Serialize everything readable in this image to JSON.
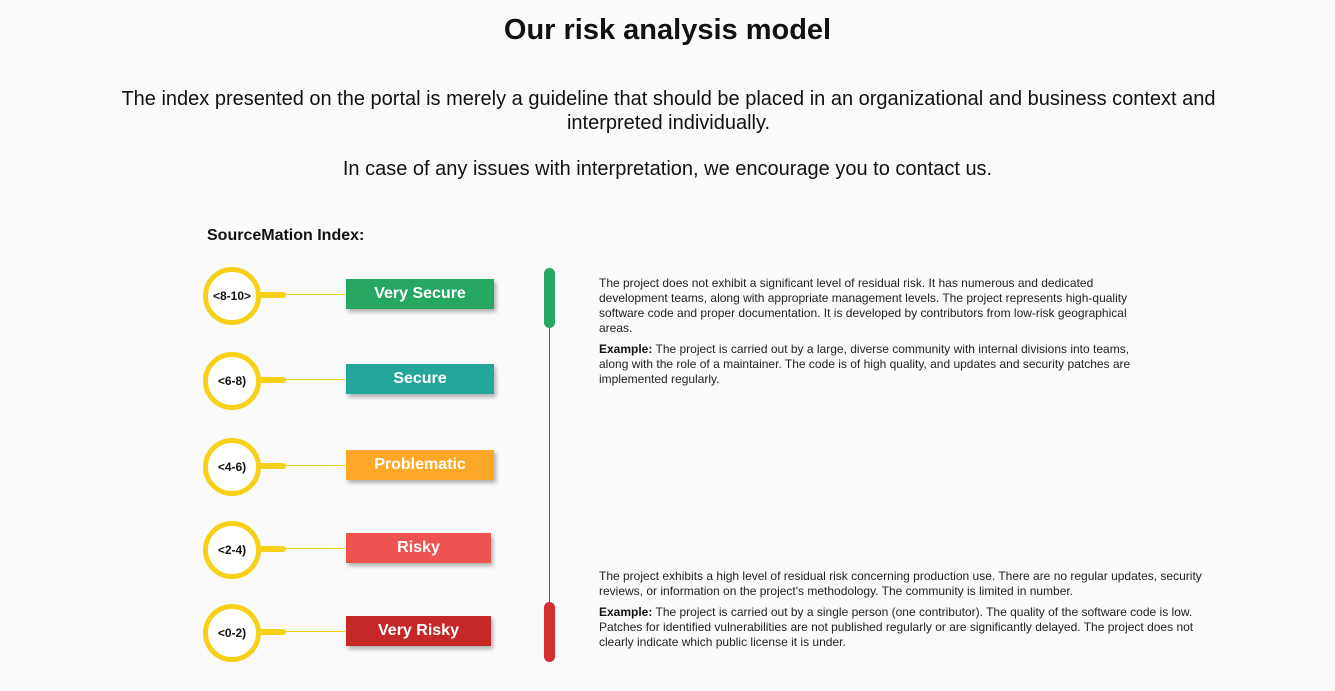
{
  "header": {
    "title": "Our risk analysis model",
    "intro": "The index presented on the portal is merely a guideline that should be placed in an organizational and business context and interpreted individually.",
    "contact": "In case of any issues with interpretation, we encourage you to contact us."
  },
  "index": {
    "label": "SourceMation Index:",
    "levels": [
      {
        "range": "<8-10>",
        "name": "Very Secure",
        "color": "#27a862"
      },
      {
        "range": "<6-8)",
        "name": "Secure",
        "color": "#26a69a"
      },
      {
        "range": "<4-6)",
        "name": "Problematic",
        "color": "#ffa726"
      },
      {
        "range": "<2-4)",
        "name": "Risky",
        "color": "#ef5350"
      },
      {
        "range": "<0-2)",
        "name": "Very Risky",
        "color": "#c62828"
      }
    ]
  },
  "scale": {
    "top_color": "#27a862",
    "bottom_color": "#d32f2f"
  },
  "descriptions": {
    "top": {
      "text": "The project does not exhibit a significant level of residual risk. It has numerous and dedicated development teams, along with appropriate management levels. The project represents high-quality software code and proper documentation. It is developed by contributors from low-risk geographical areas.",
      "example_label": "Example:",
      "example_text": "The project is carried out by a large, diverse community with internal divisions into teams, along with the role of a maintainer. The code is of high quality, and updates and security patches are implemented regularly."
    },
    "bottom": {
      "text": "The project exhibits a high level of residual risk concerning production use. There are no regular updates, security reviews, or information on the project's methodology. The community is limited in number.",
      "example_label": "Example:",
      "example_text": "The project is carried out by a single person (one contributor). The quality of the software code is low. Patches for identified vulnerabilities are not published regularly or are significantly delayed. The project does not clearly indicate which public license it is under."
    }
  }
}
